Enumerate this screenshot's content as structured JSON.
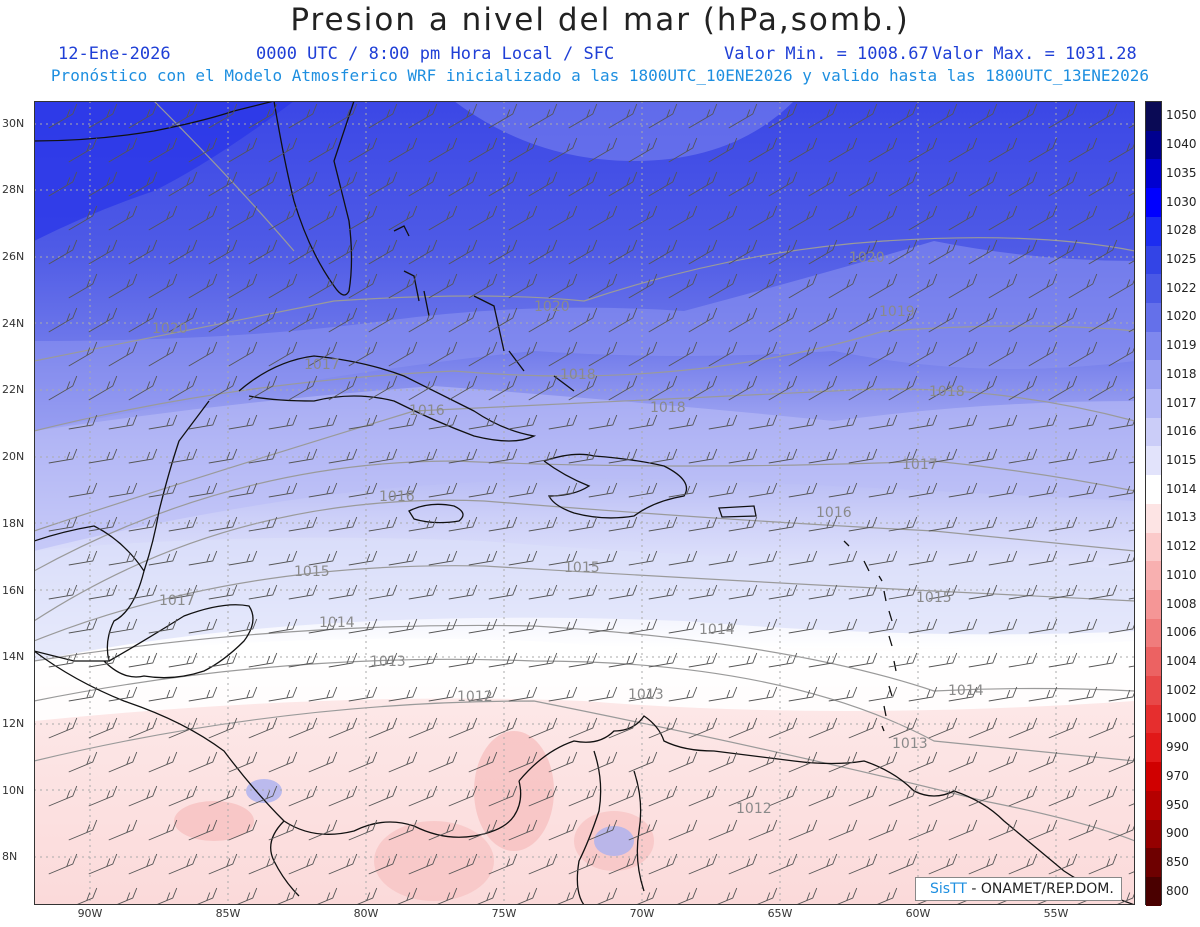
{
  "header": {
    "title": "Presion a nivel del mar (hPa,somb.)",
    "date": "12-Ene-2026",
    "time": "0000 UTC / 8:00 pm Hora Local / SFC",
    "min": "Valor Min. = 1008.67",
    "max": "Valor Max. = 1031.28",
    "forecast": "Pronóstico con el Modelo Atmosferico WRF inicializado a las 1800UTC_10ENE2026 y valido hasta las  1800UTC_13ENE2026"
  },
  "lat_labels": [
    "30N",
    "28N",
    "26N",
    "24N",
    "22N",
    "20N",
    "18N",
    "16N",
    "14N",
    "12N",
    "10N",
    "8N"
  ],
  "lon_labels": [
    "90W",
    "85W",
    "80W",
    "75W",
    "70W",
    "65W",
    "60W",
    "55W"
  ],
  "contours": [
    {
      "label": "1020"
    },
    {
      "label": "1020"
    },
    {
      "label": "1020"
    },
    {
      "label": "1019"
    },
    {
      "label": "1018"
    },
    {
      "label": "1018"
    },
    {
      "label": "1018"
    },
    {
      "label": "1017"
    },
    {
      "label": "1017"
    },
    {
      "label": "1016"
    },
    {
      "label": "1016"
    },
    {
      "label": "1015"
    },
    {
      "label": "1015"
    },
    {
      "label": "1015"
    },
    {
      "label": "1014"
    },
    {
      "label": "1014"
    },
    {
      "label": "1014"
    },
    {
      "label": "1013"
    },
    {
      "label": "1013"
    },
    {
      "label": "1013"
    },
    {
      "label": "1012"
    },
    {
      "label": "1012"
    },
    {
      "label": "1017"
    },
    {
      "label": "1016"
    }
  ],
  "colorbar": {
    "labels": [
      "1050",
      "1040",
      "1035",
      "1030",
      "1028",
      "1025",
      "1022",
      "1020",
      "1019",
      "1018",
      "1017",
      "1016",
      "1015",
      "1014",
      "1013",
      "1012",
      "1010",
      "1008",
      "1006",
      "1004",
      "1002",
      "1000",
      "990",
      "970",
      "950",
      "900",
      "850",
      "800"
    ],
    "colors": [
      "#0a0a55",
      "#00008f",
      "#0000d0",
      "#0000ff",
      "#1c2cf0",
      "#3344e6",
      "#4a59e6",
      "#6470ea",
      "#7f88ee",
      "#9aa0f2",
      "#b3b7f6",
      "#cbcdf8",
      "#e2e3fb",
      "#ffffff",
      "#fde4e4",
      "#fbcaca",
      "#f8b0b0",
      "#f59696",
      "#f07c7c",
      "#ec6262",
      "#e84848",
      "#e62e2e",
      "#e11818",
      "#d00000",
      "#b50000",
      "#950000",
      "#6e0000",
      "#4a0000"
    ]
  },
  "logo": {
    "brand": "SisTT",
    "text": "- ONAMET/REP.DOM."
  }
}
